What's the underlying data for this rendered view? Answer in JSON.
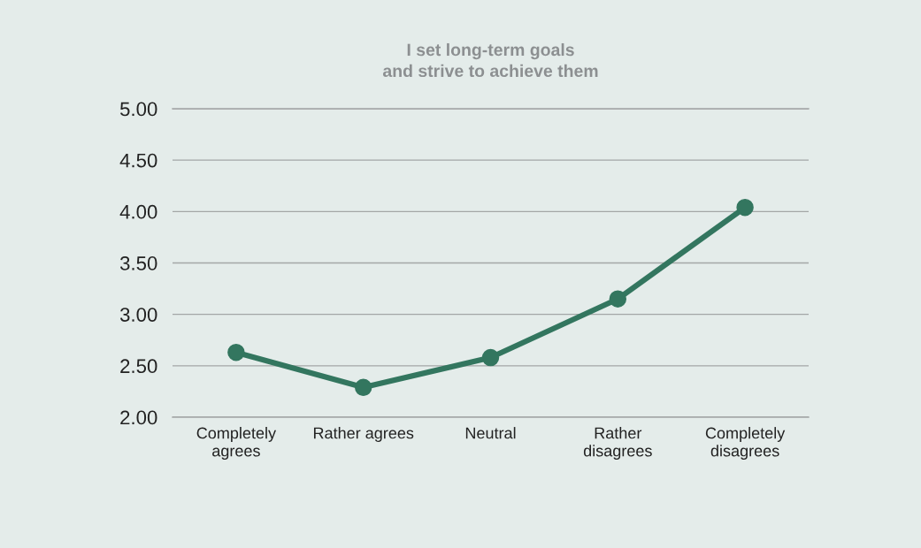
{
  "chart_data": {
    "type": "line",
    "title": "I set long-term goals\nand strive to achieve them",
    "categories": [
      "Completely\nagrees",
      "Rather agrees",
      "Neutral",
      "Rather\ndisagrees",
      "Completely\ndisagrees"
    ],
    "series": [
      {
        "color": "#33765f",
        "values": [
          2.63,
          2.29,
          2.58,
          3.15,
          4.04
        ]
      }
    ],
    "ylim": [
      2,
      5
    ],
    "yticks": [
      {
        "value": 2,
        "label": "2.00"
      },
      {
        "value": 2.5,
        "label": "2.50"
      },
      {
        "value": 3,
        "label": "3.00"
      },
      {
        "value": 3.5,
        "label": "3.50"
      },
      {
        "value": 4,
        "label": "4.00"
      },
      {
        "value": 4.5,
        "label": "4.50"
      },
      {
        "value": 5,
        "label": "5.00"
      }
    ],
    "grid": "y",
    "marker": "circle",
    "line_style": "solid"
  }
}
